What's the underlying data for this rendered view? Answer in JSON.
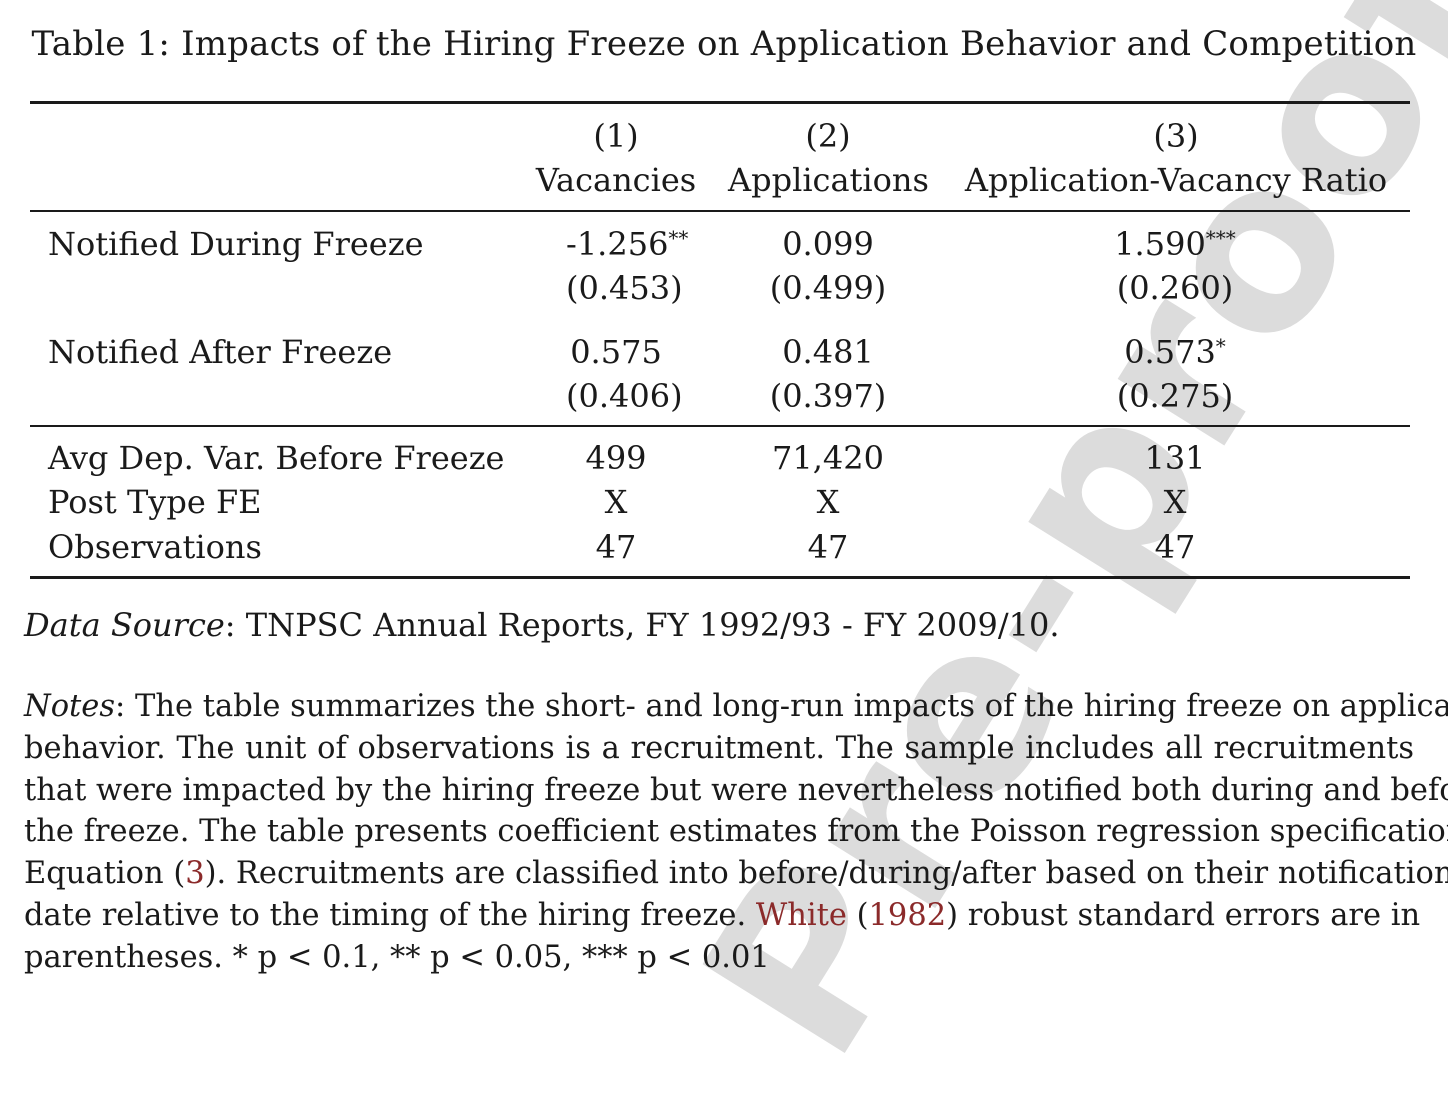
{
  "watermark": "Pre-proof",
  "table": {
    "caption": "Table 1: Impacts of the Hiring Freeze on Application Behavior and Competition",
    "columns": [
      {
        "number": "(1)",
        "label": "Vacancies"
      },
      {
        "number": "(2)",
        "label": "Applications"
      },
      {
        "number": "(3)",
        "label": "Application-Vacancy Ratio"
      }
    ],
    "rows": [
      {
        "label": "Notified During Freeze",
        "coefficients": [
          {
            "value": "-1.256",
            "stars": "**"
          },
          {
            "value": "0.099",
            "stars": ""
          },
          {
            "value": "1.590",
            "stars": "***"
          }
        ],
        "standard_errors": [
          "(0.453)",
          "(0.499)",
          "(0.260)"
        ]
      },
      {
        "label": "Notified After Freeze",
        "coefficients": [
          {
            "value": "0.575",
            "stars": ""
          },
          {
            "value": "0.481",
            "stars": ""
          },
          {
            "value": "0.573",
            "stars": "*"
          }
        ],
        "standard_errors": [
          "(0.406)",
          "(0.397)",
          "(0.275)"
        ]
      }
    ],
    "footer_rows": [
      {
        "label": "Avg Dep. Var. Before Freeze",
        "values": [
          "499",
          "71,420",
          "131"
        ]
      },
      {
        "label": "Post Type FE",
        "values": [
          "X",
          "X",
          "X"
        ]
      },
      {
        "label": "Observations",
        "values": [
          "47",
          "47",
          "47"
        ]
      }
    ]
  },
  "data_source": {
    "label": "Data Source",
    "text": ": TNPSC Annual Reports, FY 1992/93 - FY 2009/10."
  },
  "notes": {
    "label": "Notes",
    "line1": ": The table summarizes the short- and long-run impacts of the hiring freeze on application",
    "line2": "behavior.  The unit of observations is a recruitment.  The sample includes all recruitments",
    "line3": "that were impacted by the hiring freeze but were nevertheless notified both during and before",
    "line4": "the freeze. The table presents coefficient estimates from the Poisson regression specification in",
    "line5_a": "Equation (",
    "line5_ref": "3",
    "line5_b": ").  Recruitments are classified into before/during/after based on their notification",
    "line6_a": "date relative to the timing of the hiring freeze.  ",
    "line6_ref_author": "White",
    "line6_b": " (",
    "line6_ref_year": "1982",
    "line6_c": ") robust standard errors are in",
    "line7": "parentheses. * p < 0.1, ** p < 0.05, *** p < 0.01"
  },
  "colors": {
    "text": "#1a1a1a",
    "link": "#8b2a2a",
    "watermark": "#dcdcdc"
  }
}
